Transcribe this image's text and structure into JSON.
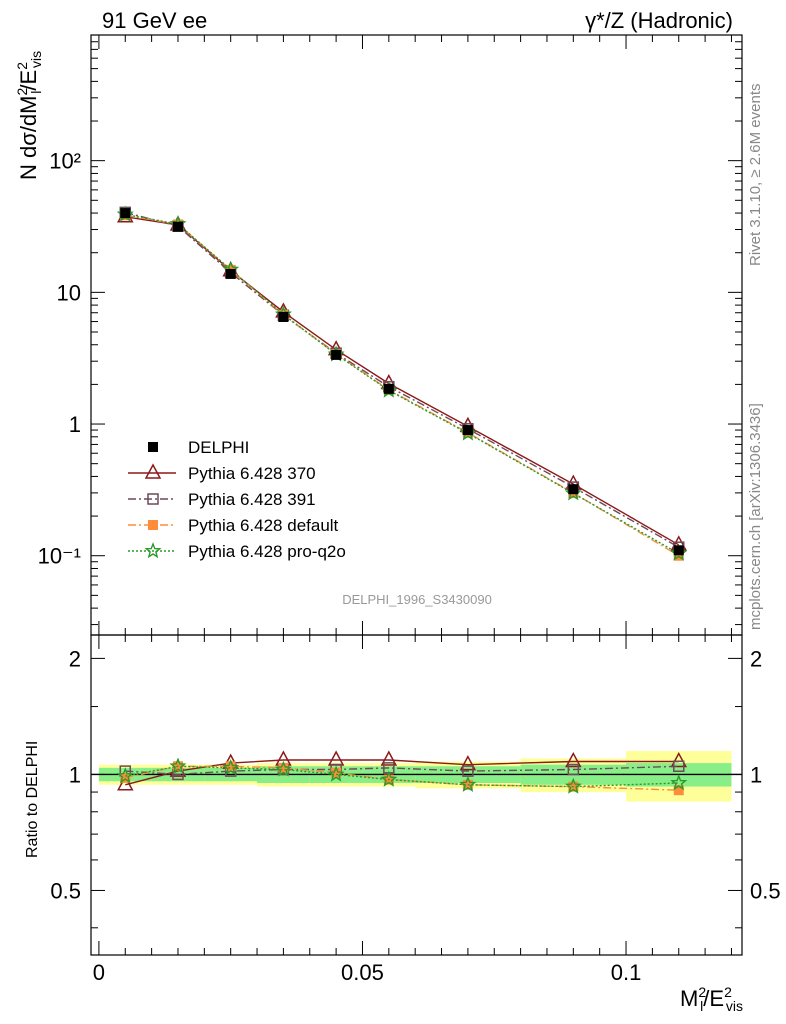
{
  "header": {
    "left": "91 GeV ee",
    "right": "γ*/Z (Hadronic)"
  },
  "side_labels": {
    "rivet": "Rivet 3.1.10, ≥ 2.6M events",
    "mcplots": "mcplots.cern.ch [arXiv:1306.3436]"
  },
  "watermark": "DELPHI_1996_S3430090",
  "ylabel_main": "N dσ/dM²l/E²vis",
  "ylabel_ratio": "Ratio to DELPHI",
  "xlabel": "M²l/E²vis",
  "main_y_ticks": [
    "10⁻¹",
    "1",
    "10",
    "10²"
  ],
  "ratio_y_ticks": [
    "0.5",
    "1",
    "2"
  ],
  "x_ticks": [
    "0",
    "0.05",
    "0.1"
  ],
  "legend": [
    {
      "label": "DELPHI",
      "color": "#000000",
      "marker": "filled-square",
      "line": "none"
    },
    {
      "label": "Pythia 6.428 370",
      "color": "#8b1a1a",
      "marker": "open-triangle",
      "line": "solid"
    },
    {
      "label": "Pythia 6.428 391",
      "color": "#6e4a5a",
      "marker": "open-square",
      "line": "dashdot"
    },
    {
      "label": "Pythia 6.428 default",
      "color": "#ff8c3a",
      "marker": "filled-square",
      "line": "dashdot"
    },
    {
      "label": "Pythia 6.428 pro-q2o",
      "color": "#2a9a2a",
      "marker": "open-star",
      "line": "dotted"
    }
  ],
  "chart_data": {
    "type": "line",
    "x_scale": "linear",
    "xlim": [
      -0.0015,
      0.122
    ],
    "main_ylim": [
      0.025,
      900
    ],
    "main_y_scale": "log",
    "ratio_ylim": [
      0.34,
      2.3
    ],
    "ratio_y_scale": "log",
    "x": [
      0.005,
      0.015,
      0.025,
      0.035,
      0.045,
      0.055,
      0.07,
      0.09,
      0.11
    ],
    "bin_edges": [
      0.0,
      0.01,
      0.02,
      0.03,
      0.04,
      0.05,
      0.06,
      0.08,
      0.1,
      0.12
    ],
    "data": {
      "name": "DELPHI",
      "values": [
        40.0,
        31.5,
        13.8,
        6.5,
        3.35,
        1.85,
        0.9,
        0.32,
        0.11
      ],
      "band_inner": [
        0.04,
        0.04,
        0.04,
        0.05,
        0.05,
        0.05,
        0.05,
        0.06,
        0.07
      ],
      "band_outer": [
        0.06,
        0.06,
        0.06,
        0.07,
        0.07,
        0.07,
        0.08,
        0.1,
        0.15
      ]
    },
    "series": [
      {
        "name": "Pythia 6.428 370",
        "values": [
          37.5,
          32.5,
          14.6,
          7.1,
          3.67,
          2.03,
          0.96,
          0.35,
          0.121
        ],
        "ratio": [
          0.94,
          1.02,
          1.07,
          1.09,
          1.09,
          1.09,
          1.06,
          1.08,
          1.08
        ]
      },
      {
        "name": "Pythia 6.428 391",
        "values": [
          40.5,
          31.8,
          14.1,
          6.7,
          3.45,
          1.92,
          0.92,
          0.332,
          0.116
        ],
        "ratio": [
          1.02,
          1.0,
          1.02,
          1.03,
          1.03,
          1.04,
          1.02,
          1.03,
          1.05
        ]
      },
      {
        "name": "Pythia 6.428 default",
        "values": [
          38.5,
          32.8,
          14.8,
          6.75,
          3.4,
          1.82,
          0.86,
          0.3,
          0.1
        ],
        "ratio": [
          0.98,
          1.05,
          1.05,
          1.04,
          1.01,
          0.97,
          0.94,
          0.93,
          0.91
        ]
      },
      {
        "name": "Pythia 6.428 pro-q2o",
        "values": [
          39.0,
          33.0,
          14.9,
          6.8,
          3.38,
          1.8,
          0.85,
          0.298,
          0.104
        ],
        "ratio": [
          0.99,
          1.05,
          1.04,
          1.03,
          1.0,
          0.97,
          0.94,
          0.93,
          0.95
        ]
      }
    ]
  }
}
